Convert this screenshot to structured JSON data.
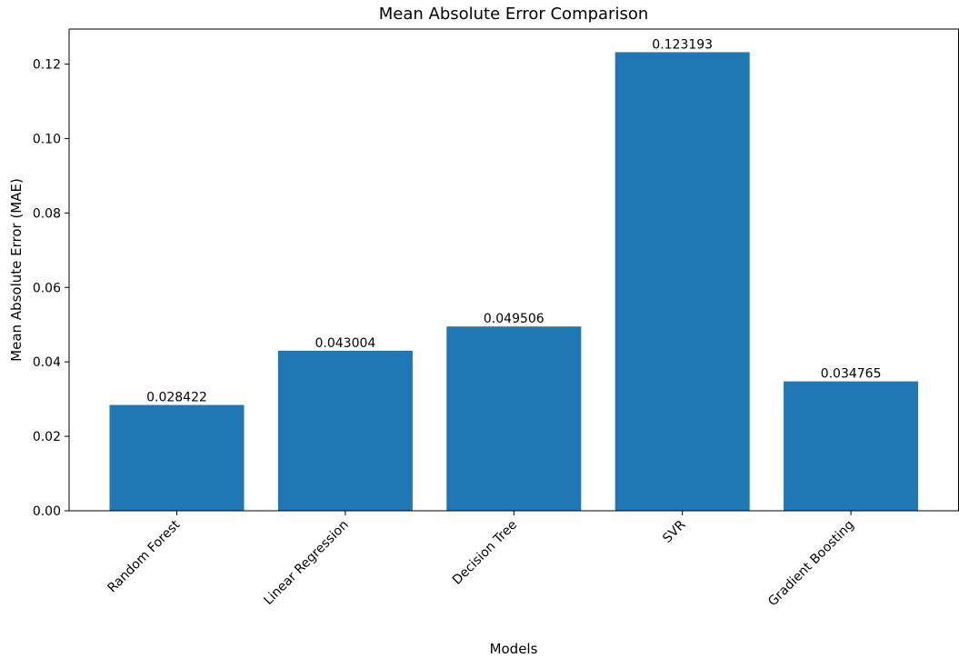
{
  "chart_data": {
    "type": "bar",
    "title": "Mean Absolute Error Comparison",
    "xlabel": "Models",
    "ylabel": "Mean Absolute Error (MAE)",
    "categories": [
      "Random Forest",
      "Linear Regression",
      "Decision Tree",
      "SVR",
      "Gradient Boosting"
    ],
    "values": [
      0.028422,
      0.043004,
      0.049506,
      0.123193,
      0.034765
    ],
    "data_labels": [
      "0.028422",
      "0.043004",
      "0.049506",
      "0.123193",
      "0.034765"
    ],
    "ylim": [
      0,
      0.1294
    ],
    "yticks": [
      0.0,
      0.02,
      0.04,
      0.06,
      0.08,
      0.1,
      0.12
    ],
    "ytick_labels": [
      "0.00",
      "0.02",
      "0.04",
      "0.06",
      "0.08",
      "0.10",
      "0.12"
    ],
    "bar_color": "#1f77b4",
    "grid": false,
    "legend": "none"
  }
}
